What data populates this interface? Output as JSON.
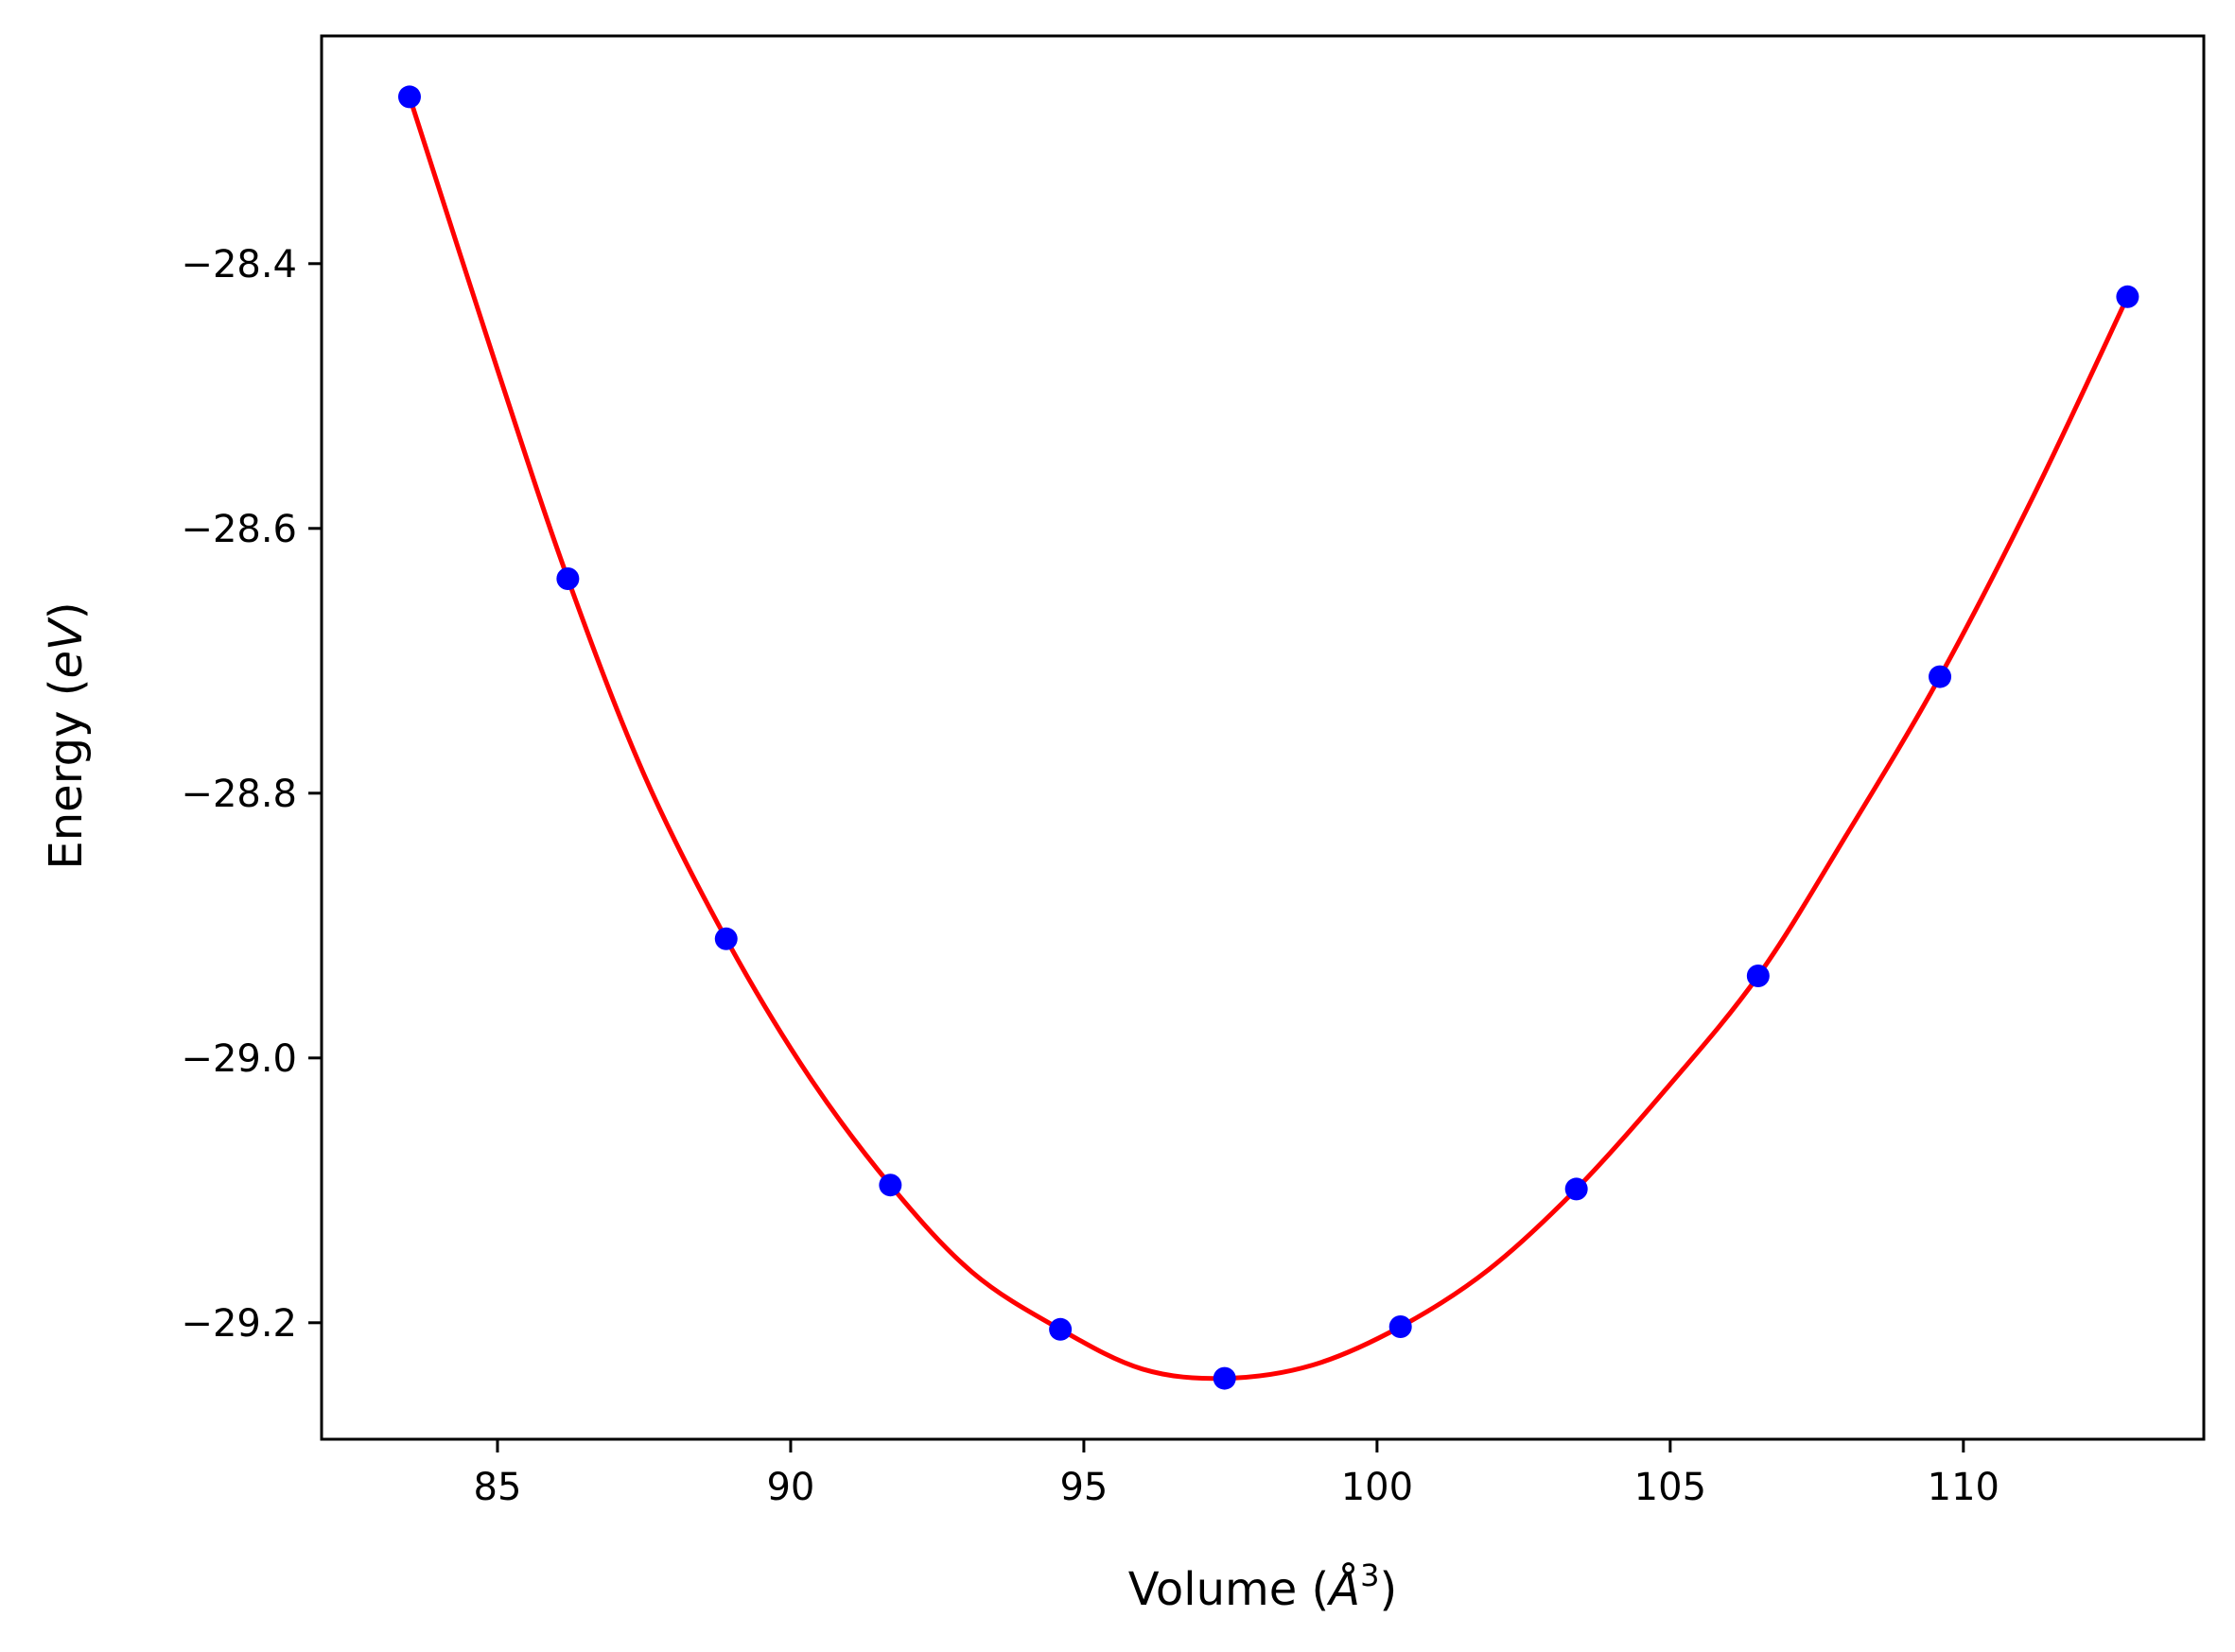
{
  "chart_data": {
    "type": "scatter",
    "title": "",
    "xlabel": {
      "prefix": "Volume (",
      "symbol": "Å",
      "superscript": "3",
      "suffix": ")"
    },
    "ylabel": {
      "prefix": "Energy (",
      "symbol": "eV",
      "suffix": ")"
    },
    "xlim": [
      82.0,
      114.1
    ],
    "ylim": [
      -29.288,
      -28.228
    ],
    "xticks": [
      85,
      90,
      95,
      100,
      105,
      110
    ],
    "xtick_labels": [
      "85",
      "90",
      "95",
      "100",
      "105",
      "110"
    ],
    "yticks": [
      -28.4,
      -28.6,
      -28.8,
      -29.0,
      -29.2
    ],
    "ytick_labels": [
      "−28.4",
      "−28.6",
      "−28.8",
      "−29.0",
      "−29.2"
    ],
    "grid": false,
    "legend": "none",
    "series": [
      {
        "kind": "points",
        "color": "#0000ff",
        "x": [
          83.5,
          86.2,
          88.9,
          91.7,
          94.6,
          97.4,
          100.4,
          103.4,
          106.5,
          109.6,
          112.8
        ],
        "y": [
          -28.274,
          -28.638,
          -28.91,
          -29.096,
          -29.205,
          -29.242,
          -29.203,
          -29.099,
          -28.938,
          -28.712,
          -28.425
        ]
      },
      {
        "kind": "fit_line",
        "color": "#ff0000",
        "x": [
          83.5,
          85.0,
          86.2,
          87.5,
          88.9,
          90.3,
          91.7,
          93.1,
          94.6,
          96.0,
          97.4,
          98.9,
          100.4,
          101.9,
          103.4,
          104.9,
          106.5,
          108.0,
          109.6,
          111.2,
          112.8
        ],
        "y": [
          -28.274,
          -28.48,
          -28.638,
          -28.786,
          -28.91,
          -29.013,
          -29.096,
          -29.162,
          -29.205,
          -29.235,
          -29.242,
          -29.232,
          -29.203,
          -29.16,
          -29.099,
          -29.025,
          -28.938,
          -28.832,
          -28.712,
          -28.575,
          -28.425
        ]
      }
    ]
  }
}
